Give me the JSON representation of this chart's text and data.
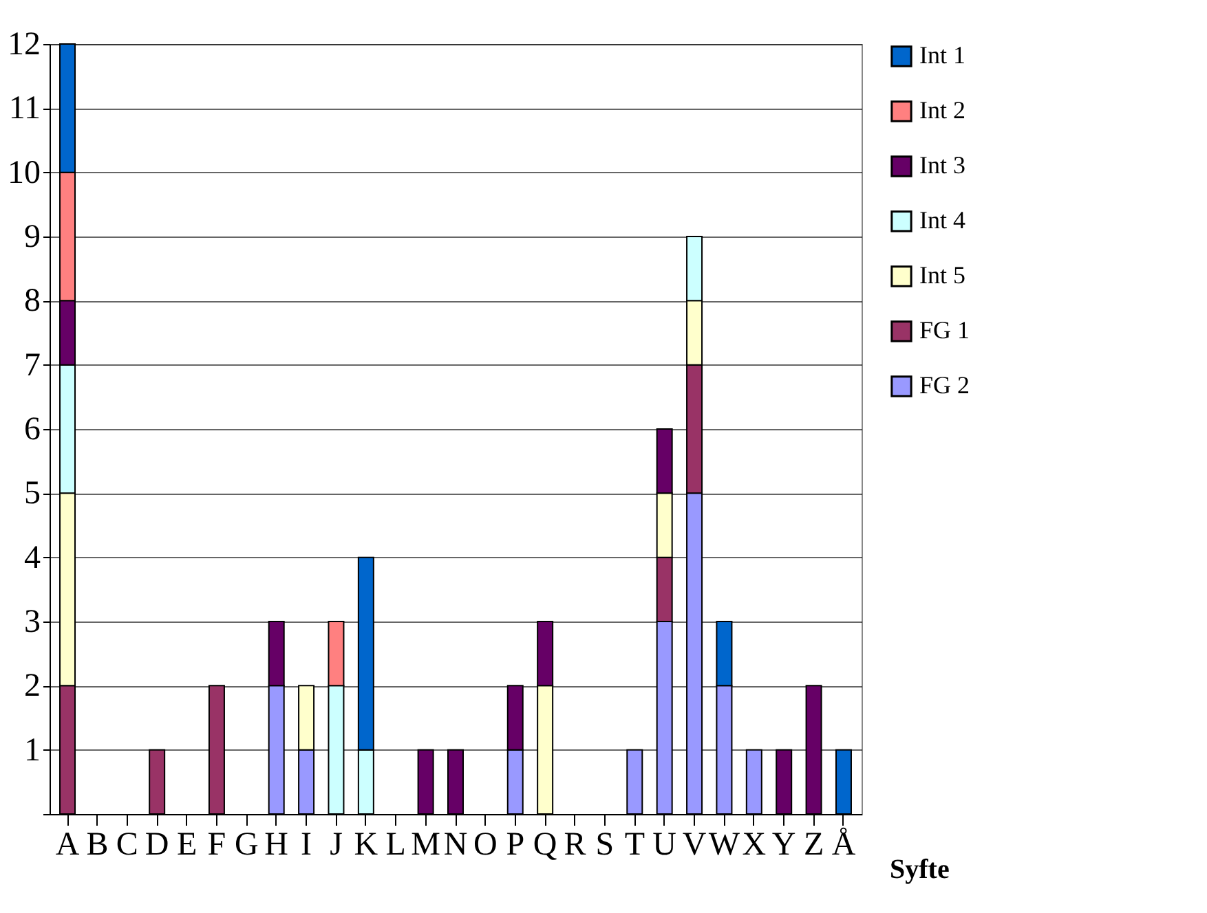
{
  "chart_data": {
    "type": "bar",
    "stacked": true,
    "xlabel": "Syfte",
    "categories": [
      "A",
      "B",
      "C",
      "D",
      "E",
      "F",
      "G",
      "H",
      "I",
      "J",
      "K",
      "L",
      "M",
      "N",
      "O",
      "P",
      "Q",
      "R",
      "S",
      "T",
      "U",
      "V",
      "W",
      "X",
      "Y",
      "Z",
      "Å"
    ],
    "series": [
      {
        "name": "FG 2",
        "color": "#9999ff",
        "values": [
          0,
          0,
          0,
          0,
          0,
          0,
          0,
          2,
          1,
          0,
          0,
          0,
          0,
          0,
          0,
          1,
          0,
          0,
          0,
          1,
          3,
          5,
          2,
          1,
          0,
          0,
          0
        ]
      },
      {
        "name": "FG 1",
        "color": "#993366",
        "values": [
          2,
          0,
          0,
          1,
          0,
          2,
          0,
          0,
          0,
          0,
          0,
          0,
          0,
          0,
          0,
          0,
          0,
          0,
          0,
          0,
          1,
          2,
          0,
          0,
          0,
          0,
          0
        ]
      },
      {
        "name": "Int 5",
        "color": "#ffffcc",
        "values": [
          3,
          0,
          0,
          0,
          0,
          0,
          0,
          0,
          1,
          0,
          0,
          0,
          0,
          0,
          0,
          0,
          2,
          0,
          0,
          0,
          1,
          1,
          0,
          0,
          0,
          0,
          0
        ]
      },
      {
        "name": "Int 4",
        "color": "#ccffff",
        "values": [
          2,
          0,
          0,
          0,
          0,
          0,
          0,
          0,
          0,
          2,
          1,
          0,
          0,
          0,
          0,
          0,
          0,
          0,
          0,
          0,
          0,
          1,
          0,
          0,
          0,
          0,
          0
        ]
      },
      {
        "name": "Int 3",
        "color": "#660066",
        "values": [
          1,
          0,
          0,
          0,
          0,
          0,
          0,
          1,
          0,
          0,
          0,
          0,
          1,
          1,
          0,
          1,
          1,
          0,
          0,
          0,
          1,
          0,
          0,
          0,
          1,
          2,
          0
        ]
      },
      {
        "name": "Int 2",
        "color": "#ff8080",
        "values": [
          2,
          0,
          0,
          0,
          0,
          0,
          0,
          0,
          0,
          1,
          0,
          0,
          0,
          0,
          0,
          0,
          0,
          0,
          0,
          0,
          0,
          0,
          0,
          0,
          0,
          0,
          0
        ]
      },
      {
        "name": "Int 1",
        "color": "#0066cc",
        "values": [
          2,
          0,
          0,
          0,
          0,
          0,
          0,
          0,
          0,
          0,
          3,
          0,
          0,
          0,
          0,
          0,
          0,
          0,
          0,
          0,
          0,
          0,
          1,
          0,
          0,
          0,
          1
        ]
      }
    ],
    "ylim": [
      0,
      12
    ],
    "yticks": [
      {
        "value": 0,
        "label": null
      },
      1,
      2,
      3,
      4,
      5,
      6,
      7,
      8,
      9,
      10,
      11,
      12
    ],
    "grid": "y",
    "legend": "right"
  }
}
